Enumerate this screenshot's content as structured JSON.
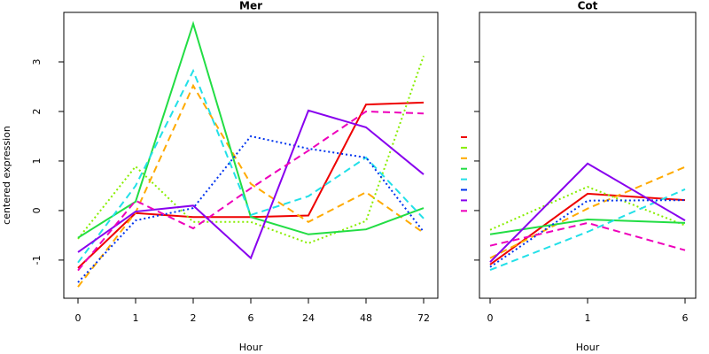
{
  "chart_data": [
    {
      "type": "line",
      "title": "Mer",
      "xlabel": "Hour",
      "ylabel": "centered expression",
      "categories": [
        "0",
        "1",
        "2",
        "6",
        "24",
        "48",
        "72"
      ],
      "ylim": [
        -1.77,
        4.0
      ],
      "yticks": [
        -1,
        0,
        1,
        2,
        3
      ],
      "ytick_labels": true,
      "legend": false,
      "series": [
        {
          "color": "#ee0000",
          "style": "solid",
          "values": [
            -1.16,
            -0.05,
            -0.13,
            -0.13,
            -0.1,
            2.14,
            2.18
          ]
        },
        {
          "color": "#88ee00",
          "style": "dotted",
          "values": [
            -0.57,
            0.89,
            -0.23,
            -0.23,
            -0.66,
            -0.21,
            3.12
          ]
        },
        {
          "color": "#ffaa00",
          "style": "dashed",
          "values": [
            -1.54,
            -0.04,
            2.52,
            0.54,
            -0.23,
            0.37,
            -0.45
          ]
        },
        {
          "color": "#22dd44",
          "style": "solid",
          "values": [
            -0.55,
            0.18,
            3.77,
            -0.13,
            -0.48,
            -0.38,
            0.05
          ]
        },
        {
          "color": "#22e0e8",
          "style": "dashed",
          "values": [
            -1.05,
            0.5,
            2.82,
            -0.09,
            0.29,
            1.07,
            -0.16
          ]
        },
        {
          "color": "#0033ee",
          "style": "dotted",
          "values": [
            -1.45,
            -0.2,
            0.05,
            1.5,
            1.25,
            1.07,
            -0.43
          ]
        },
        {
          "color": "#8800ee",
          "style": "solid",
          "values": [
            -0.84,
            -0.02,
            0.1,
            -0.96,
            2.02,
            1.68,
            0.73
          ]
        },
        {
          "color": "#ee00bb",
          "style": "dashed",
          "values": [
            -1.21,
            0.2,
            -0.36,
            0.45,
            1.21,
            2.0,
            1.96
          ]
        }
      ]
    },
    {
      "type": "line",
      "title": "Cot",
      "xlabel": "Hour",
      "categories": [
        "0",
        "1",
        "6"
      ],
      "ylim": [
        -1.77,
        4.0
      ],
      "yticks": [
        -1,
        0,
        1,
        2,
        3
      ],
      "ytick_labels": false,
      "legend": true,
      "series": [
        {
          "color": "#ee0000",
          "style": "solid",
          "values": [
            -1.09,
            0.34,
            0.21
          ]
        },
        {
          "color": "#88ee00",
          "style": "dotted",
          "values": [
            -0.39,
            0.48,
            -0.3
          ]
        },
        {
          "color": "#ffaa00",
          "style": "dashed",
          "values": [
            -0.96,
            0.04,
            0.88
          ]
        },
        {
          "color": "#22dd44",
          "style": "solid",
          "values": [
            -0.48,
            -0.18,
            -0.25
          ]
        },
        {
          "color": "#22e0e8",
          "style": "dashed",
          "values": [
            -1.2,
            -0.43,
            0.43
          ]
        },
        {
          "color": "#0033ee",
          "style": "dotted",
          "values": [
            -1.14,
            0.2,
            0.21
          ]
        },
        {
          "color": "#8800ee",
          "style": "solid",
          "values": [
            -1.04,
            0.95,
            -0.2
          ]
        },
        {
          "color": "#ee00bb",
          "style": "dashed",
          "values": [
            -0.71,
            -0.25,
            -0.8
          ]
        }
      ]
    }
  ]
}
